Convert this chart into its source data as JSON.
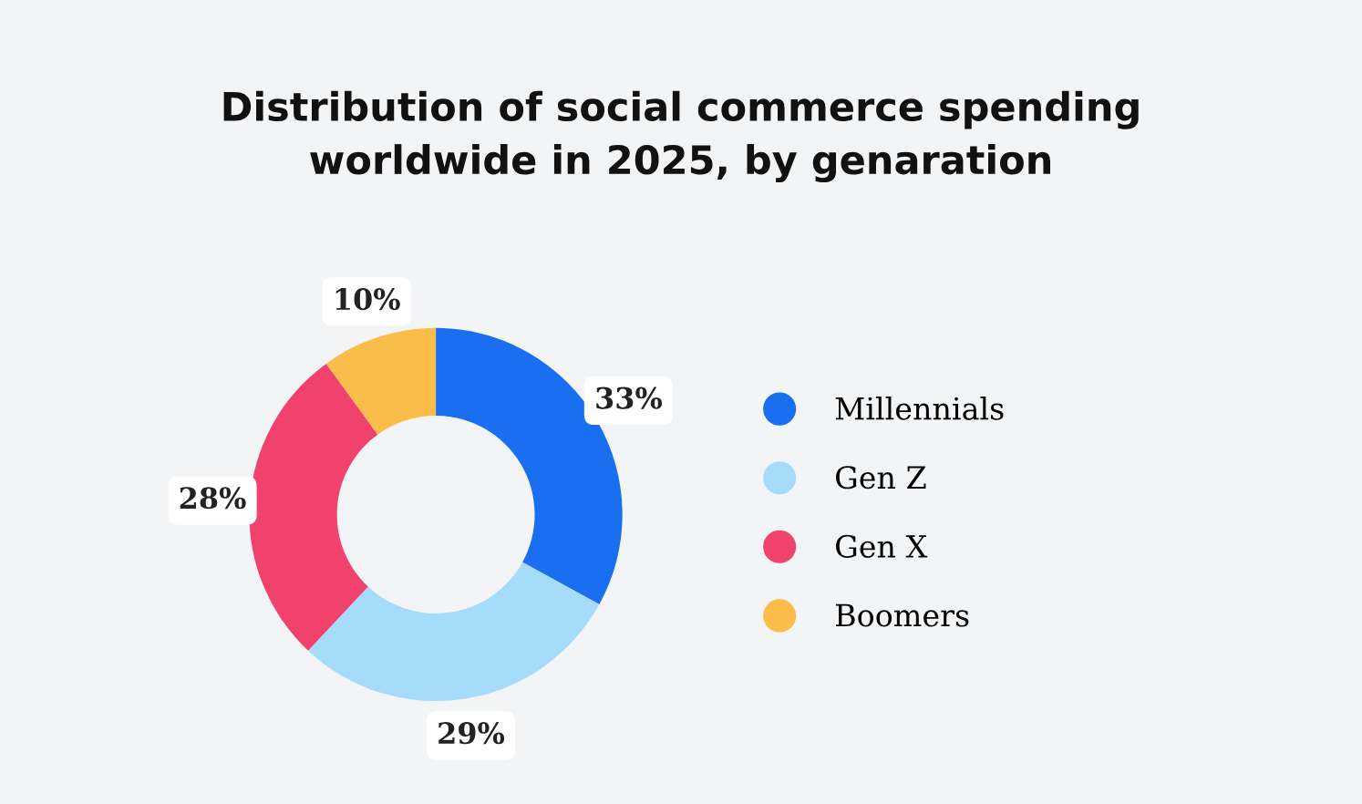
{
  "chart_data": {
    "type": "donut",
    "title": "Distribution of social commerce spending\nworldwide in 2025, by genaration",
    "categories": [
      "Millennials",
      "Gen Z",
      "Gen X",
      "Boomers"
    ],
    "values": [
      33,
      29,
      28,
      10
    ],
    "colors": [
      "#1a6ef0",
      "#a6dcfb",
      "#f0426c",
      "#fbbd4a"
    ],
    "value_labels": [
      "33%",
      "29%",
      "28%",
      "10%"
    ],
    "legend": "right"
  }
}
